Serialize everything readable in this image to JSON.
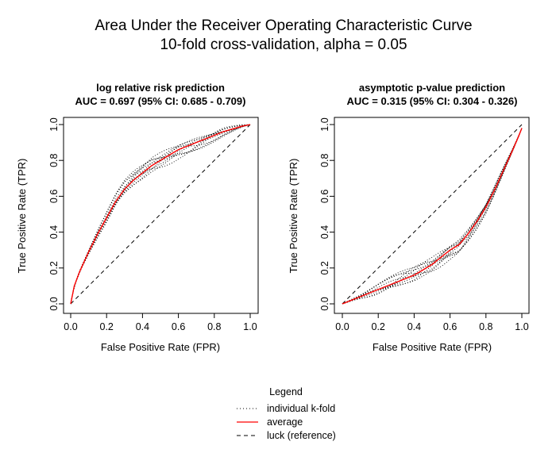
{
  "figure": {
    "title_line1": "Area Under the Receiver Operating Characteristic Curve",
    "title_line2": "10-fold cross-validation, alpha = 0.05"
  },
  "legend": {
    "title": "Legend",
    "entries": [
      {
        "label": "individual k-fold",
        "style": "dotted",
        "color": "#000000"
      },
      {
        "label": "average",
        "style": "solid",
        "color": "#ff0000"
      },
      {
        "label": "luck (reference)",
        "style": "dashed",
        "color": "#000000"
      }
    ]
  },
  "chart_data": [
    {
      "type": "line",
      "title": "log relative risk prediction",
      "subtitle": "AUC = 0.697 (95% CI: 0.685 - 0.709)",
      "xlabel": "False Positive Rate (FPR)",
      "ylabel": "True Positive Rate (TPR)",
      "xlim": [
        0,
        1
      ],
      "ylim": [
        0,
        1
      ],
      "xticks": [
        "0.0",
        "0.2",
        "0.4",
        "0.6",
        "0.8",
        "1.0"
      ],
      "yticks": [
        "0.0",
        "0.2",
        "0.4",
        "0.6",
        "0.8",
        "1.0"
      ],
      "grid": false,
      "average": {
        "x": [
          0,
          0.02,
          0.05,
          0.1,
          0.15,
          0.2,
          0.25,
          0.3,
          0.35,
          0.4,
          0.45,
          0.5,
          0.55,
          0.6,
          0.65,
          0.7,
          0.75,
          0.8,
          0.85,
          0.9,
          0.95,
          1.0
        ],
        "y": [
          0,
          0.1,
          0.18,
          0.29,
          0.39,
          0.48,
          0.57,
          0.64,
          0.69,
          0.73,
          0.77,
          0.8,
          0.83,
          0.86,
          0.88,
          0.9,
          0.92,
          0.94,
          0.96,
          0.975,
          0.99,
          1.0
        ]
      },
      "fold_spread": [
        0.05,
        0.03,
        0.04,
        0.025,
        0.055,
        0.015,
        0.035,
        0.045,
        0.02,
        0.06
      ],
      "reference": {
        "x": [
          0,
          1
        ],
        "y": [
          0,
          1
        ]
      }
    },
    {
      "type": "line",
      "title": "asymptotic p-value prediction",
      "subtitle": "AUC = 0.315 (95% CI: 0.304 - 0.326)",
      "xlabel": "False Positive Rate (FPR)",
      "ylabel": "True Positive Rate (TPR)",
      "xlim": [
        0,
        1
      ],
      "ylim": [
        0,
        1
      ],
      "xticks": [
        "0.0",
        "0.2",
        "0.4",
        "0.6",
        "0.8",
        "1.0"
      ],
      "yticks": [
        "0.0",
        "0.2",
        "0.4",
        "0.6",
        "0.8",
        "1.0"
      ],
      "grid": false,
      "average": {
        "x": [
          0,
          0.1,
          0.2,
          0.3,
          0.4,
          0.45,
          0.5,
          0.55,
          0.6,
          0.65,
          0.7,
          0.75,
          0.8,
          0.85,
          0.9,
          0.95,
          0.98,
          1.0
        ],
        "y": [
          0,
          0.04,
          0.08,
          0.12,
          0.16,
          0.19,
          0.22,
          0.26,
          0.3,
          0.33,
          0.39,
          0.46,
          0.54,
          0.64,
          0.75,
          0.86,
          0.93,
          0.98
        ]
      },
      "fold_spread": [
        0.05,
        0.03,
        0.045,
        0.02,
        0.055,
        0.015,
        0.035,
        0.04,
        0.025,
        0.06
      ],
      "reference": {
        "x": [
          0,
          1
        ],
        "y": [
          0,
          1
        ]
      }
    }
  ]
}
